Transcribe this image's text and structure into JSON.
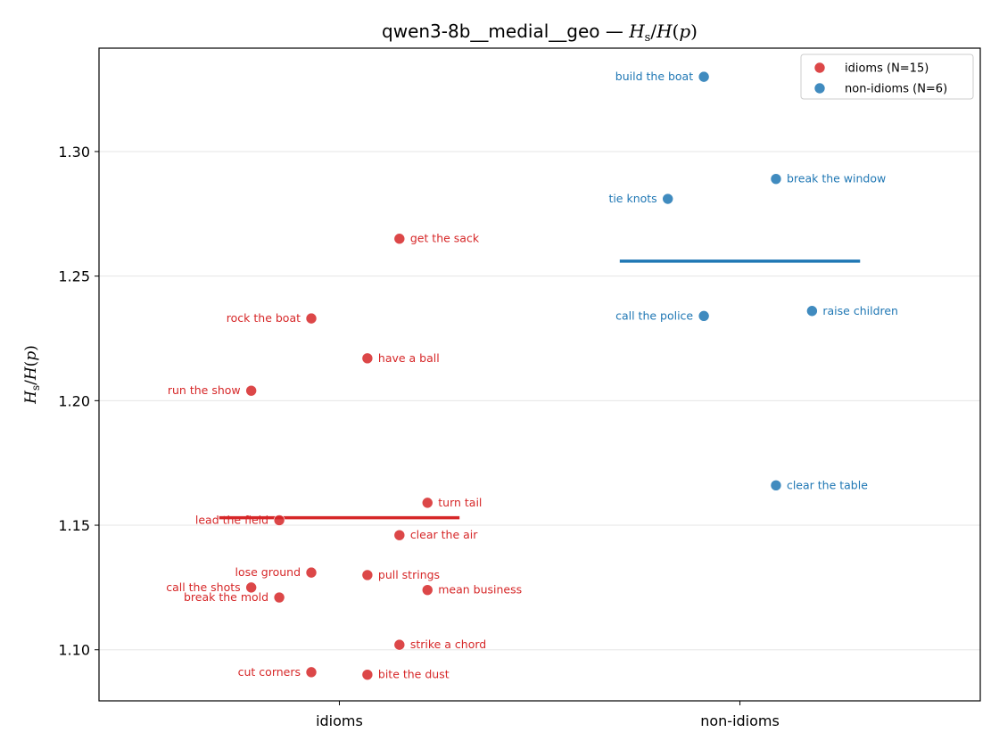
{
  "chart_data": {
    "type": "scatter",
    "title_prefix": "qwen3-8b__medial__geo — ",
    "ylabel": "",
    "categories": [
      "idioms",
      "non-idioms"
    ],
    "ylim": [
      1.0795,
      1.3415
    ],
    "yticks": [
      1.1,
      1.15,
      1.2,
      1.25,
      1.3
    ],
    "ytick_labels": [
      "1.10",
      "1.15",
      "1.20",
      "1.25",
      "1.30"
    ],
    "grid": "horizontal",
    "legend_position": "top-right",
    "series": [
      {
        "name": "idioms (N=15)",
        "category": "idioms",
        "color": "#d62728",
        "mean": 1.153,
        "points": [
          {
            "label": "get the sack",
            "offset": 0.15,
            "y": 1.265
          },
          {
            "label": "rock the boat",
            "offset": -0.07,
            "y": 1.233
          },
          {
            "label": "have a ball",
            "offset": 0.07,
            "y": 1.217
          },
          {
            "label": "run the show",
            "offset": -0.22,
            "y": 1.204
          },
          {
            "label": "turn tail",
            "offset": 0.22,
            "y": 1.159
          },
          {
            "label": "lead the field",
            "offset": -0.15,
            "y": 1.152
          },
          {
            "label": "clear the air",
            "offset": 0.15,
            "y": 1.146
          },
          {
            "label": "lose ground",
            "offset": -0.07,
            "y": 1.131
          },
          {
            "label": "pull strings",
            "offset": 0.07,
            "y": 1.13
          },
          {
            "label": "call the shots",
            "offset": -0.22,
            "y": 1.125
          },
          {
            "label": "mean business",
            "offset": 0.22,
            "y": 1.124
          },
          {
            "label": "break the mold",
            "offset": -0.15,
            "y": 1.121
          },
          {
            "label": "strike a chord",
            "offset": 0.15,
            "y": 1.102
          },
          {
            "label": "cut corners",
            "offset": -0.07,
            "y": 1.091
          },
          {
            "label": "bite the dust",
            "offset": 0.07,
            "y": 1.09
          }
        ]
      },
      {
        "name": "non-idioms (N=6)",
        "category": "non-idioms",
        "color": "#1f77b4",
        "mean": 1.256,
        "points": [
          {
            "label": "build the boat",
            "offset": -0.09,
            "y": 1.33
          },
          {
            "label": "break the window",
            "offset": 0.09,
            "y": 1.289
          },
          {
            "label": "tie knots",
            "offset": -0.18,
            "y": 1.281
          },
          {
            "label": "raise children",
            "offset": 0.18,
            "y": 1.236
          },
          {
            "label": "call the police",
            "offset": -0.09,
            "y": 1.234
          },
          {
            "label": "clear the table",
            "offset": 0.09,
            "y": 1.166
          }
        ]
      }
    ]
  }
}
